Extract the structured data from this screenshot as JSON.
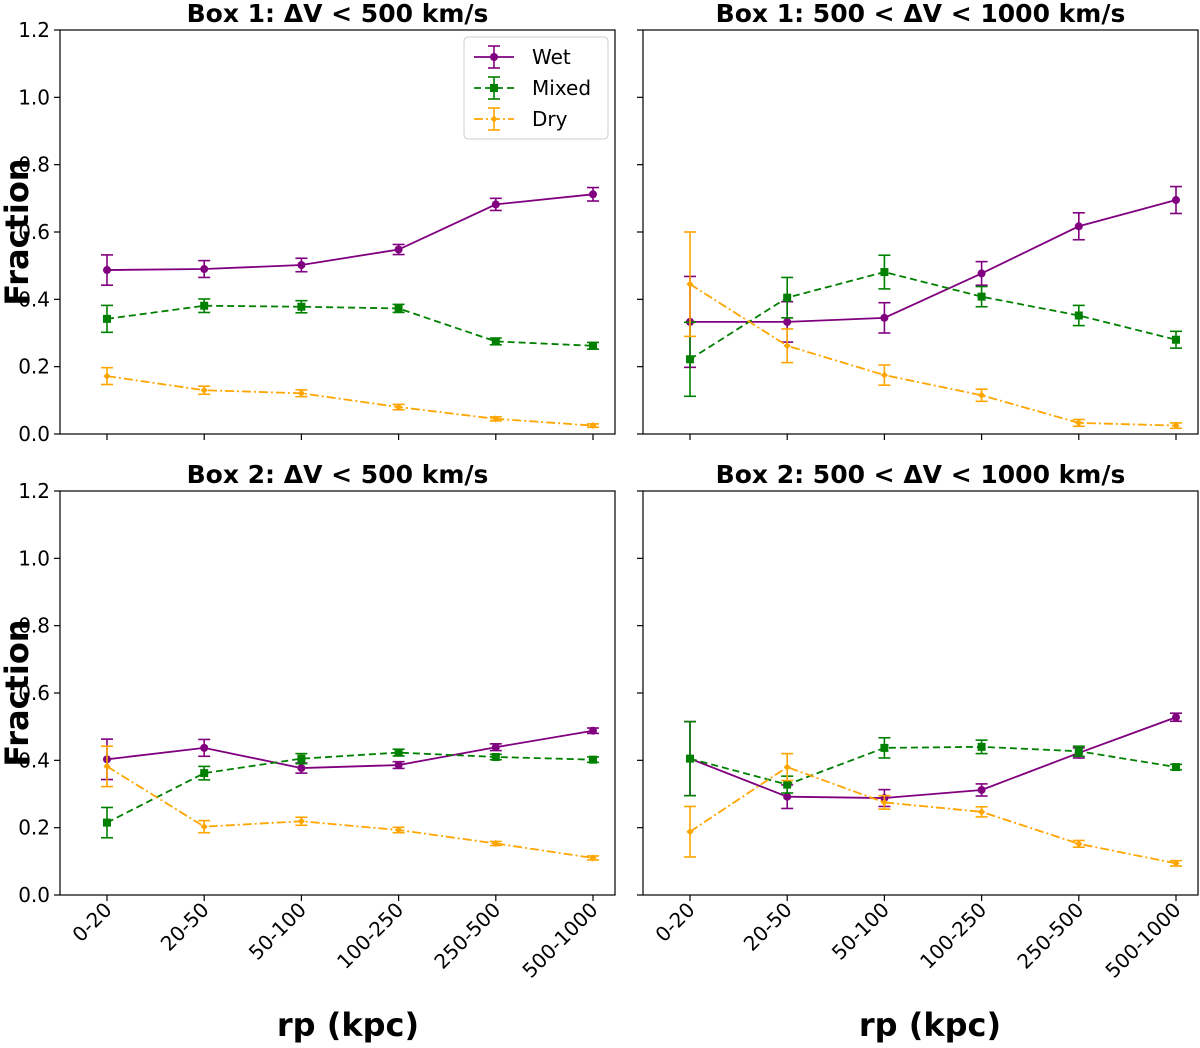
{
  "figure": {
    "xlabel": "rp (kpc)",
    "ylabel": "Fraction"
  },
  "legend": {
    "entries": [
      "Wet",
      "Mixed",
      "Dry"
    ]
  },
  "chart_data": [
    {
      "type": "line",
      "title": "Box 1: ΔV < 500 km/s",
      "categories": [
        "0-20",
        "20-50",
        "50-100",
        "100-250",
        "250-500",
        "500-1000"
      ],
      "xlabel": "",
      "ylabel": "Fraction",
      "ylim": [
        0,
        1.2
      ],
      "yticks": [
        "0.0",
        "0.2",
        "0.4",
        "0.6",
        "0.8",
        "1.0",
        "1.2"
      ],
      "legend": "top-right",
      "series": [
        {
          "name": "Wet",
          "color": "#800080",
          "style": "solid",
          "marker": "circle",
          "values": [
            0.487,
            0.49,
            0.502,
            0.548,
            0.682,
            0.712
          ],
          "errors": [
            0.045,
            0.025,
            0.02,
            0.015,
            0.018,
            0.02
          ]
        },
        {
          "name": "Mixed",
          "color": "#008000",
          "style": "dashed",
          "marker": "square",
          "values": [
            0.342,
            0.381,
            0.378,
            0.373,
            0.275,
            0.262
          ],
          "errors": [
            0.04,
            0.02,
            0.018,
            0.012,
            0.01,
            0.01
          ]
        },
        {
          "name": "Dry",
          "color": "#FFA500",
          "style": "dashdot",
          "marker": "diamond",
          "values": [
            0.172,
            0.13,
            0.121,
            0.08,
            0.045,
            0.025
          ],
          "errors": [
            0.025,
            0.012,
            0.01,
            0.008,
            0.006,
            0.005
          ]
        }
      ]
    },
    {
      "type": "line",
      "title": "Box 1: 500 < ΔV < 1000 km/s",
      "categories": [
        "0-20",
        "20-50",
        "50-100",
        "100-250",
        "250-500",
        "500-1000"
      ],
      "xlabel": "",
      "ylabel": "",
      "ylim": [
        0,
        1.2
      ],
      "series": [
        {
          "name": "Wet",
          "color": "#800080",
          "style": "solid",
          "marker": "circle",
          "values": [
            0.333,
            0.333,
            0.345,
            0.477,
            0.617,
            0.695
          ],
          "errors": [
            0.135,
            0.06,
            0.045,
            0.035,
            0.04,
            0.04
          ]
        },
        {
          "name": "Mixed",
          "color": "#008000",
          "style": "dashed",
          "marker": "square",
          "values": [
            0.222,
            0.405,
            0.481,
            0.408,
            0.352,
            0.28
          ],
          "errors": [
            0.11,
            0.06,
            0.05,
            0.03,
            0.03,
            0.025
          ]
        },
        {
          "name": "Dry",
          "color": "#FFA500",
          "style": "dashdot",
          "marker": "diamond",
          "values": [
            0.445,
            0.262,
            0.175,
            0.115,
            0.033,
            0.025
          ],
          "errors": [
            0.155,
            0.05,
            0.03,
            0.018,
            0.01,
            0.008
          ]
        }
      ]
    },
    {
      "type": "line",
      "title": "Box 2: ΔV < 500 km/s",
      "categories": [
        "0-20",
        "20-50",
        "50-100",
        "100-250",
        "250-500",
        "500-1000"
      ],
      "xlabel": "rp (kpc)",
      "ylabel": "Fraction",
      "ylim": [
        0,
        1.2
      ],
      "series": [
        {
          "name": "Wet",
          "color": "#800080",
          "style": "solid",
          "marker": "circle",
          "values": [
            0.403,
            0.437,
            0.377,
            0.386,
            0.439,
            0.488
          ],
          "errors": [
            0.06,
            0.025,
            0.015,
            0.01,
            0.01,
            0.008
          ]
        },
        {
          "name": "Mixed",
          "color": "#008000",
          "style": "dashed",
          "marker": "square",
          "values": [
            0.215,
            0.362,
            0.405,
            0.423,
            0.41,
            0.402
          ],
          "errors": [
            0.045,
            0.02,
            0.015,
            0.01,
            0.008,
            0.008
          ]
        },
        {
          "name": "Dry",
          "color": "#FFA500",
          "style": "dashdot",
          "marker": "diamond",
          "values": [
            0.382,
            0.203,
            0.219,
            0.193,
            0.153,
            0.11
          ],
          "errors": [
            0.06,
            0.018,
            0.012,
            0.008,
            0.006,
            0.006
          ]
        }
      ]
    },
    {
      "type": "line",
      "title": "Box 2: 500 < ΔV < 1000 km/s",
      "categories": [
        "0-20",
        "20-50",
        "50-100",
        "100-250",
        "250-500",
        "500-1000"
      ],
      "xlabel": "rp (kpc)",
      "ylabel": "",
      "ylim": [
        0,
        1.2
      ],
      "series": [
        {
          "name": "Wet",
          "color": "#800080",
          "style": "solid",
          "marker": "circle",
          "values": [
            0.405,
            0.292,
            0.288,
            0.312,
            0.422,
            0.528
          ],
          "errors": [
            0.11,
            0.035,
            0.025,
            0.018,
            0.015,
            0.012
          ]
        },
        {
          "name": "Mixed",
          "color": "#008000",
          "style": "dashed",
          "marker": "square",
          "values": [
            0.405,
            0.328,
            0.437,
            0.44,
            0.427,
            0.38
          ],
          "errors": [
            0.11,
            0.025,
            0.03,
            0.02,
            0.015,
            0.008
          ]
        },
        {
          "name": "Dry",
          "color": "#FFA500",
          "style": "dashdot",
          "marker": "diamond",
          "values": [
            0.188,
            0.38,
            0.275,
            0.247,
            0.152,
            0.094
          ],
          "errors": [
            0.075,
            0.04,
            0.02,
            0.015,
            0.01,
            0.008
          ]
        }
      ]
    }
  ]
}
